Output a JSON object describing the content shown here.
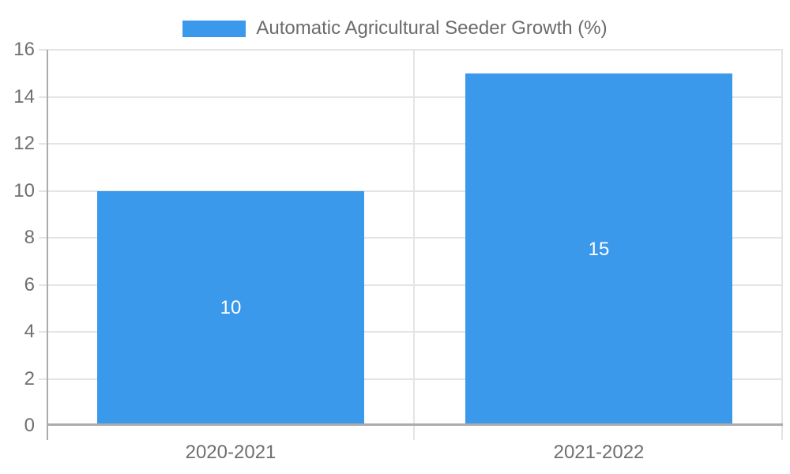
{
  "chart_data": {
    "type": "bar",
    "title": "",
    "categories": [
      "2020-2021",
      "2021-2022"
    ],
    "series": [
      {
        "name": "Automatic Agricultural Seeder Growth (%)",
        "values": [
          10,
          15
        ],
        "color": "#3b99ec"
      }
    ],
    "value_labels": [
      "10",
      "15"
    ],
    "xlabel": "",
    "ylabel": "",
    "ylim": [
      0,
      16
    ],
    "yticks": [
      0,
      2,
      4,
      6,
      8,
      10,
      12,
      14,
      16
    ],
    "grid": true,
    "legend_position": "top",
    "colors": {
      "bar": "#3b99ec",
      "axis_line": "#ababab",
      "gridline": "#e4e4e4",
      "tick_label": "#6f6f6f",
      "legend_text": "#6b6b6b",
      "value_label": "#ffffff",
      "background": "#ffffff"
    }
  }
}
